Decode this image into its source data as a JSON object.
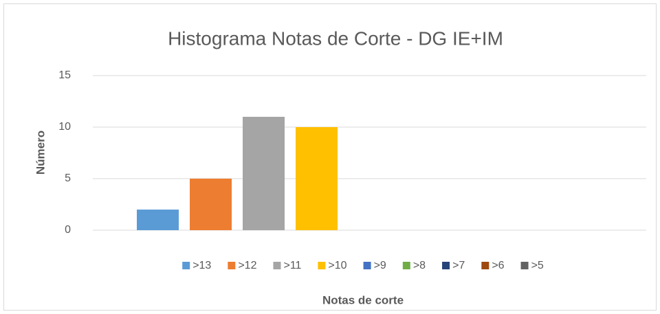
{
  "chart_data": {
    "type": "bar",
    "title": "Histograma Notas de Corte - DG IE+IM",
    "xlabel": "Notas de corte",
    "ylabel": "Número",
    "categories": [
      null
    ],
    "series": [
      {
        "name": ">13",
        "color": "#5b9bd5",
        "values": [
          2
        ]
      },
      {
        "name": ">12",
        "color": "#ed7d31",
        "values": [
          5
        ]
      },
      {
        "name": ">11",
        "color": "#a5a5a5",
        "values": [
          11
        ]
      },
      {
        "name": ">10",
        "color": "#ffc000",
        "values": [
          10
        ]
      },
      {
        "name": ">9",
        "color": "#4472c4",
        "values": [
          0
        ]
      },
      {
        "name": ">8",
        "color": "#70ad47",
        "values": [
          0
        ]
      },
      {
        "name": ">7",
        "color": "#264478",
        "values": [
          0
        ]
      },
      {
        "name": ">6",
        "color": "#9e480e",
        "values": [
          0
        ]
      },
      {
        "name": ">5",
        "color": "#636363",
        "values": [
          0
        ]
      }
    ],
    "ylim": [
      0,
      15
    ],
    "yticks": [
      0,
      5,
      10,
      15
    ],
    "grid": true,
    "legend": "bottom"
  }
}
